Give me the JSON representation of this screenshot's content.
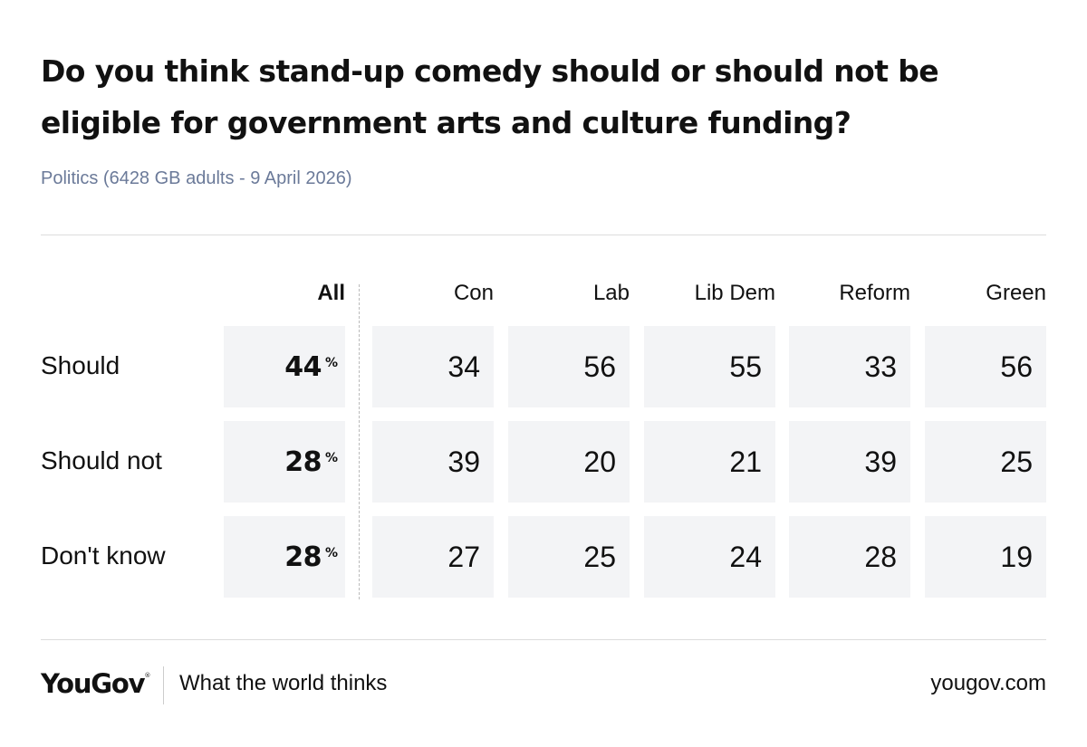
{
  "header": {
    "title": "Do you think stand-up comedy should or should not be eligible for government arts and culture funding?",
    "subtitle": "Politics (6428 GB adults - 9 April 2026)"
  },
  "chart_data": {
    "type": "table",
    "title": "Do you think stand-up comedy should or should not be eligible for government arts and culture funding?",
    "subtitle": "Politics (6428 GB adults - 9 April 2026)",
    "columns": [
      "All",
      "Con",
      "Lab",
      "Lib Dem",
      "Reform",
      "Green"
    ],
    "percent_symbol": "%",
    "rows": [
      {
        "label": "Should",
        "values": [
          "44",
          "34",
          "56",
          "55",
          "33",
          "56"
        ]
      },
      {
        "label": "Should not",
        "values": [
          "28",
          "39",
          "20",
          "21",
          "39",
          "25"
        ]
      },
      {
        "label": "Don't know",
        "values": [
          "28",
          "27",
          "25",
          "24",
          "28",
          "19"
        ]
      }
    ]
  },
  "footer": {
    "brand": "YouGov",
    "brand_mark": "®",
    "tagline": "What the world thinks",
    "url": "yougov.com"
  },
  "colors": {
    "text": "#111111",
    "subtitle": "#6b7a99",
    "cell_background": "#f3f4f6",
    "rule": "#dcdcdc"
  }
}
